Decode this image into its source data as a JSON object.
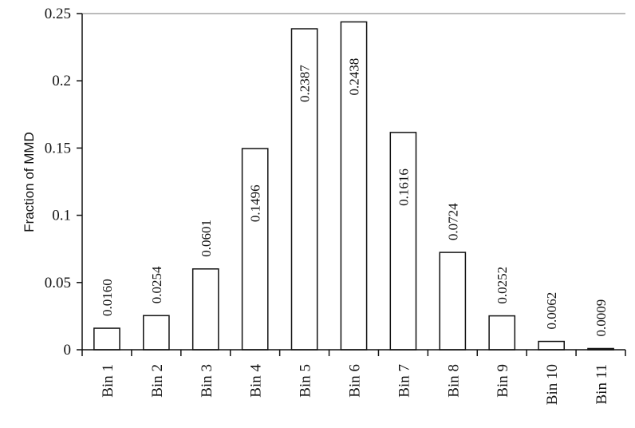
{
  "chart_data": {
    "type": "bar",
    "ylabel": "Fraction of MMD",
    "xlabel": "",
    "title": "",
    "ylim": [
      0,
      0.25
    ],
    "yticks": [
      "0",
      "0.05",
      "0.1",
      "0.15",
      "0.2",
      "0.25"
    ],
    "categories": [
      "Bin 1",
      "Bin 2",
      "Bin 3",
      "Bin 4",
      "Bin 5",
      "Bin 6",
      "Bin 7",
      "Bin 8",
      "Bin 9",
      "Bin 10",
      "Bin 11"
    ],
    "values": [
      0.016,
      0.0254,
      0.0601,
      0.1496,
      0.2387,
      0.2438,
      0.1616,
      0.0724,
      0.0252,
      0.0062,
      0.0009
    ],
    "data_labels": [
      "0.0160",
      "0.0254",
      "0.0601",
      "0.1496",
      "0.2387",
      "0.2438",
      "0.1616",
      "0.0724",
      "0.0252",
      "0.0062",
      "0.0009"
    ],
    "grid": false,
    "legend": "none"
  }
}
